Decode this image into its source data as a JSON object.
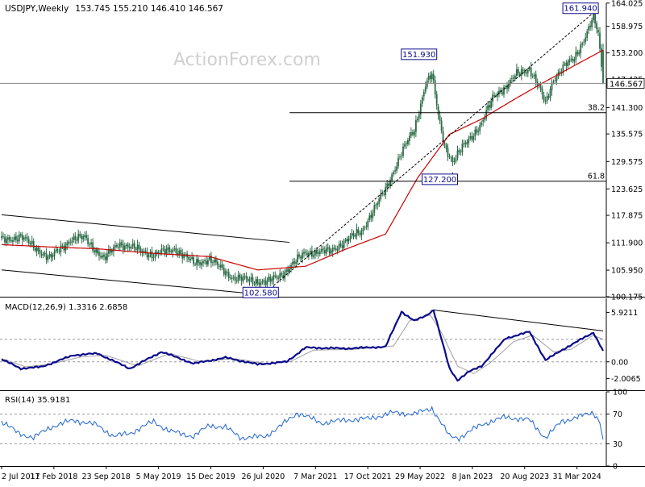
{
  "header": {
    "symbol": "USDJPY,Weekly",
    "ohlc": "153.745 155.210 146.410 146.567"
  },
  "watermark": "ActionForex.com",
  "colors": {
    "background": "#ffffff",
    "candle": "#2d6b47",
    "axis": "#000000",
    "ma": "#cc0000",
    "macd_line": "#0a0a8c",
    "macd_signal": "#a0a0a0",
    "rsi": "#1e64d2",
    "trendline": "#000000",
    "hline": "#000000",
    "grid_dashed": "#999999",
    "watermark": "#d0d0d0",
    "label_border": "#0a0a8c",
    "label_text": "#0a0a8c"
  },
  "chart_data": [
    {
      "id": "price",
      "type": "candlestick",
      "title": "USDJPY,Weekly",
      "ylim": [
        100.175,
        164.0
      ],
      "yticks": [
        "164.025",
        "158.975",
        "153.200",
        "147.425",
        "141.300",
        "135.575",
        "129.575",
        "123.625",
        "117.875",
        "111.900",
        "105.950",
        "100.175"
      ],
      "current_price_label": "146.567",
      "current_price": 146.567,
      "xticks": [
        "2 Jul 2017",
        "11 Feb 2018",
        "23 Sep 2018",
        "5 May 2019",
        "15 Dec 2019",
        "26 Jul 2020",
        "7 Mar 2021",
        "17 Oct 2021",
        "29 May 2022",
        "8 Jan 2023",
        "20 Aug 2023",
        "31 Mar 2024"
      ],
      "key_points": [
        {
          "week": 0,
          "close": 112.5
        },
        {
          "week": 12,
          "close": 113.2
        },
        {
          "week": 30,
          "close": 108.5
        },
        {
          "week": 43,
          "close": 112.6
        },
        {
          "week": 52,
          "close": 113.0
        },
        {
          "week": 64,
          "close": 108.3
        },
        {
          "week": 73,
          "close": 111.8
        },
        {
          "week": 95,
          "close": 109.3
        },
        {
          "week": 108,
          "close": 110.6
        },
        {
          "week": 120,
          "close": 107.5
        },
        {
          "week": 130,
          "close": 108.3
        },
        {
          "week": 145,
          "close": 104.2
        },
        {
          "week": 166,
          "close": 103.3
        },
        {
          "week": 175,
          "close": 105.0
        },
        {
          "week": 190,
          "close": 109.8
        },
        {
          "week": 205,
          "close": 110.0
        },
        {
          "week": 225,
          "close": 114.5
        },
        {
          "week": 240,
          "close": 123.5
        },
        {
          "week": 250,
          "close": 131.5
        },
        {
          "week": 258,
          "close": 136.5
        },
        {
          "week": 265,
          "close": 146.5
        },
        {
          "week": 269,
          "close": 148.5
        },
        {
          "week": 273,
          "close": 139.5
        },
        {
          "week": 277,
          "close": 133.0
        },
        {
          "week": 282,
          "close": 129.5
        },
        {
          "week": 290,
          "close": 133.5
        },
        {
          "week": 300,
          "close": 137.8
        },
        {
          "week": 308,
          "close": 144.0
        },
        {
          "week": 315,
          "close": 145.8
        },
        {
          "week": 322,
          "close": 148.5
        },
        {
          "week": 330,
          "close": 149.8
        },
        {
          "week": 335,
          "close": 146.5
        },
        {
          "week": 340,
          "close": 142.0
        },
        {
          "week": 345,
          "close": 147.5
        },
        {
          "week": 352,
          "close": 150.5
        },
        {
          "week": 358,
          "close": 151.8
        },
        {
          "week": 363,
          "close": 155.5
        },
        {
          "week": 368,
          "close": 159.5
        },
        {
          "week": 370,
          "close": 161.0
        },
        {
          "week": 373,
          "close": 157.0
        },
        {
          "week": 376,
          "close": 146.567
        }
      ],
      "ma_key_points": [
        {
          "week": 0,
          "value": 111.5
        },
        {
          "week": 30,
          "value": 111.0
        },
        {
          "week": 60,
          "value": 110.6
        },
        {
          "week": 95,
          "value": 109.6
        },
        {
          "week": 130,
          "value": 108.9
        },
        {
          "week": 160,
          "value": 106.0
        },
        {
          "week": 190,
          "value": 106.8
        },
        {
          "week": 215,
          "value": 110.5
        },
        {
          "week": 240,
          "value": 113.8
        },
        {
          "week": 260,
          "value": 126.0
        },
        {
          "week": 280,
          "value": 135.5
        },
        {
          "week": 300,
          "value": 138.8
        },
        {
          "week": 320,
          "value": 143.0
        },
        {
          "week": 340,
          "value": 147.0
        },
        {
          "week": 360,
          "value": 150.8
        },
        {
          "week": 376,
          "value": 153.8
        }
      ],
      "price_labels": [
        {
          "text": "161.940",
          "week": 370,
          "value": 161.94
        },
        {
          "text": "151.930",
          "week": 269,
          "value": 151.93
        },
        {
          "text": "127.200",
          "week": 282,
          "value": 127.2
        },
        {
          "text": "102.580",
          "week": 170,
          "value": 102.58
        }
      ],
      "fib_levels": [
        {
          "label": "38.2",
          "value": 140.2,
          "from_week": 180
        },
        {
          "label": "61.8",
          "value": 125.3,
          "from_week": 180
        }
      ],
      "channel_lines": [
        {
          "from": {
            "week": 0,
            "value": 118.0
          },
          "to": {
            "week": 180,
            "value": 112.0
          }
        },
        {
          "from": {
            "week": 0,
            "value": 106.0
          },
          "to": {
            "week": 170,
            "value": 100.4
          }
        }
      ],
      "trendline": {
        "from": {
          "week": 170,
          "value": 102.58
        },
        "to": {
          "week": 370,
          "value": 161.94
        }
      }
    },
    {
      "id": "macd",
      "type": "line",
      "title": "MACD(12,26,9) 1.3316 2.6858",
      "ylim": [
        -3.4,
        7.6
      ],
      "yticks": [
        "5.9211",
        "0.00",
        "-2.0065"
      ],
      "zero_level": 0.0,
      "signal_level": 2.6858,
      "macd_key_points": [
        {
          "week": 0,
          "value": 0.3
        },
        {
          "week": 12,
          "value": -0.8
        },
        {
          "week": 25,
          "value": -0.6
        },
        {
          "week": 45,
          "value": 0.8
        },
        {
          "week": 60,
          "value": 1.0
        },
        {
          "week": 80,
          "value": -0.8
        },
        {
          "week": 100,
          "value": 1.2
        },
        {
          "week": 120,
          "value": -0.2
        },
        {
          "week": 140,
          "value": 0.5
        },
        {
          "week": 160,
          "value": -0.3
        },
        {
          "week": 178,
          "value": 0.0
        },
        {
          "week": 190,
          "value": 1.7
        },
        {
          "week": 215,
          "value": 1.6
        },
        {
          "week": 240,
          "value": 1.8
        },
        {
          "week": 250,
          "value": 6.0
        },
        {
          "week": 258,
          "value": 4.9
        },
        {
          "week": 265,
          "value": 5.5
        },
        {
          "week": 270,
          "value": 6.2
        },
        {
          "week": 280,
          "value": -0.8
        },
        {
          "week": 285,
          "value": -2.2
        },
        {
          "week": 292,
          "value": -1.2
        },
        {
          "week": 300,
          "value": -0.5
        },
        {
          "week": 315,
          "value": 2.8
        },
        {
          "week": 330,
          "value": 3.6
        },
        {
          "week": 340,
          "value": 0.2
        },
        {
          "week": 352,
          "value": 1.6
        },
        {
          "week": 368,
          "value": 3.3
        },
        {
          "week": 370,
          "value": 3.5
        },
        {
          "week": 376,
          "value": 1.3316
        }
      ],
      "signal_key_points": [
        {
          "week": 0,
          "value": 0.4
        },
        {
          "week": 15,
          "value": -0.6
        },
        {
          "week": 30,
          "value": -0.3
        },
        {
          "week": 50,
          "value": 0.6
        },
        {
          "week": 65,
          "value": 0.8
        },
        {
          "week": 85,
          "value": -0.5
        },
        {
          "week": 105,
          "value": 1.0
        },
        {
          "week": 125,
          "value": 0.0
        },
        {
          "week": 145,
          "value": 0.4
        },
        {
          "week": 165,
          "value": -0.2
        },
        {
          "week": 180,
          "value": 0.0
        },
        {
          "week": 195,
          "value": 1.4
        },
        {
          "week": 220,
          "value": 1.5
        },
        {
          "week": 245,
          "value": 1.9
        },
        {
          "week": 255,
          "value": 4.9
        },
        {
          "week": 268,
          "value": 5.6
        },
        {
          "week": 275,
          "value": 3.5
        },
        {
          "week": 285,
          "value": -0.5
        },
        {
          "week": 295,
          "value": -1.4
        },
        {
          "week": 305,
          "value": -0.2
        },
        {
          "week": 320,
          "value": 2.4
        },
        {
          "week": 332,
          "value": 3.2
        },
        {
          "week": 345,
          "value": 1.2
        },
        {
          "week": 356,
          "value": 1.5
        },
        {
          "week": 370,
          "value": 3.2
        },
        {
          "week": 376,
          "value": 2.6858
        }
      ],
      "trendline": {
        "from": {
          "week": 270,
          "value": 6.2
        },
        "to": {
          "week": 376,
          "value": 3.7
        }
      }
    },
    {
      "id": "rsi",
      "type": "line",
      "title": "RSI(14) 35.9181",
      "ylim": [
        0,
        100
      ],
      "yticks": [
        "100",
        "70",
        "30",
        "0"
      ],
      "levels": [
        70,
        30
      ],
      "rsi_key_points": [
        {
          "week": 0,
          "value": 60
        },
        {
          "week": 10,
          "value": 45
        },
        {
          "week": 20,
          "value": 38
        },
        {
          "week": 30,
          "value": 52
        },
        {
          "week": 45,
          "value": 62
        },
        {
          "week": 60,
          "value": 55
        },
        {
          "week": 70,
          "value": 40
        },
        {
          "week": 80,
          "value": 44
        },
        {
          "week": 95,
          "value": 60
        },
        {
          "week": 105,
          "value": 47
        },
        {
          "week": 120,
          "value": 40
        },
        {
          "week": 130,
          "value": 55
        },
        {
          "week": 140,
          "value": 52
        },
        {
          "week": 150,
          "value": 38
        },
        {
          "week": 165,
          "value": 40
        },
        {
          "week": 175,
          "value": 55
        },
        {
          "week": 185,
          "value": 72
        },
        {
          "week": 200,
          "value": 58
        },
        {
          "week": 215,
          "value": 62
        },
        {
          "week": 230,
          "value": 64
        },
        {
          "week": 245,
          "value": 72
        },
        {
          "week": 258,
          "value": 70
        },
        {
          "week": 269,
          "value": 78
        },
        {
          "week": 280,
          "value": 40
        },
        {
          "week": 286,
          "value": 38
        },
        {
          "week": 300,
          "value": 56
        },
        {
          "week": 315,
          "value": 66
        },
        {
          "week": 330,
          "value": 62
        },
        {
          "week": 340,
          "value": 38
        },
        {
          "week": 350,
          "value": 60
        },
        {
          "week": 360,
          "value": 66
        },
        {
          "week": 370,
          "value": 72
        },
        {
          "week": 374,
          "value": 60
        },
        {
          "week": 376,
          "value": 35.9181
        }
      ]
    }
  ]
}
